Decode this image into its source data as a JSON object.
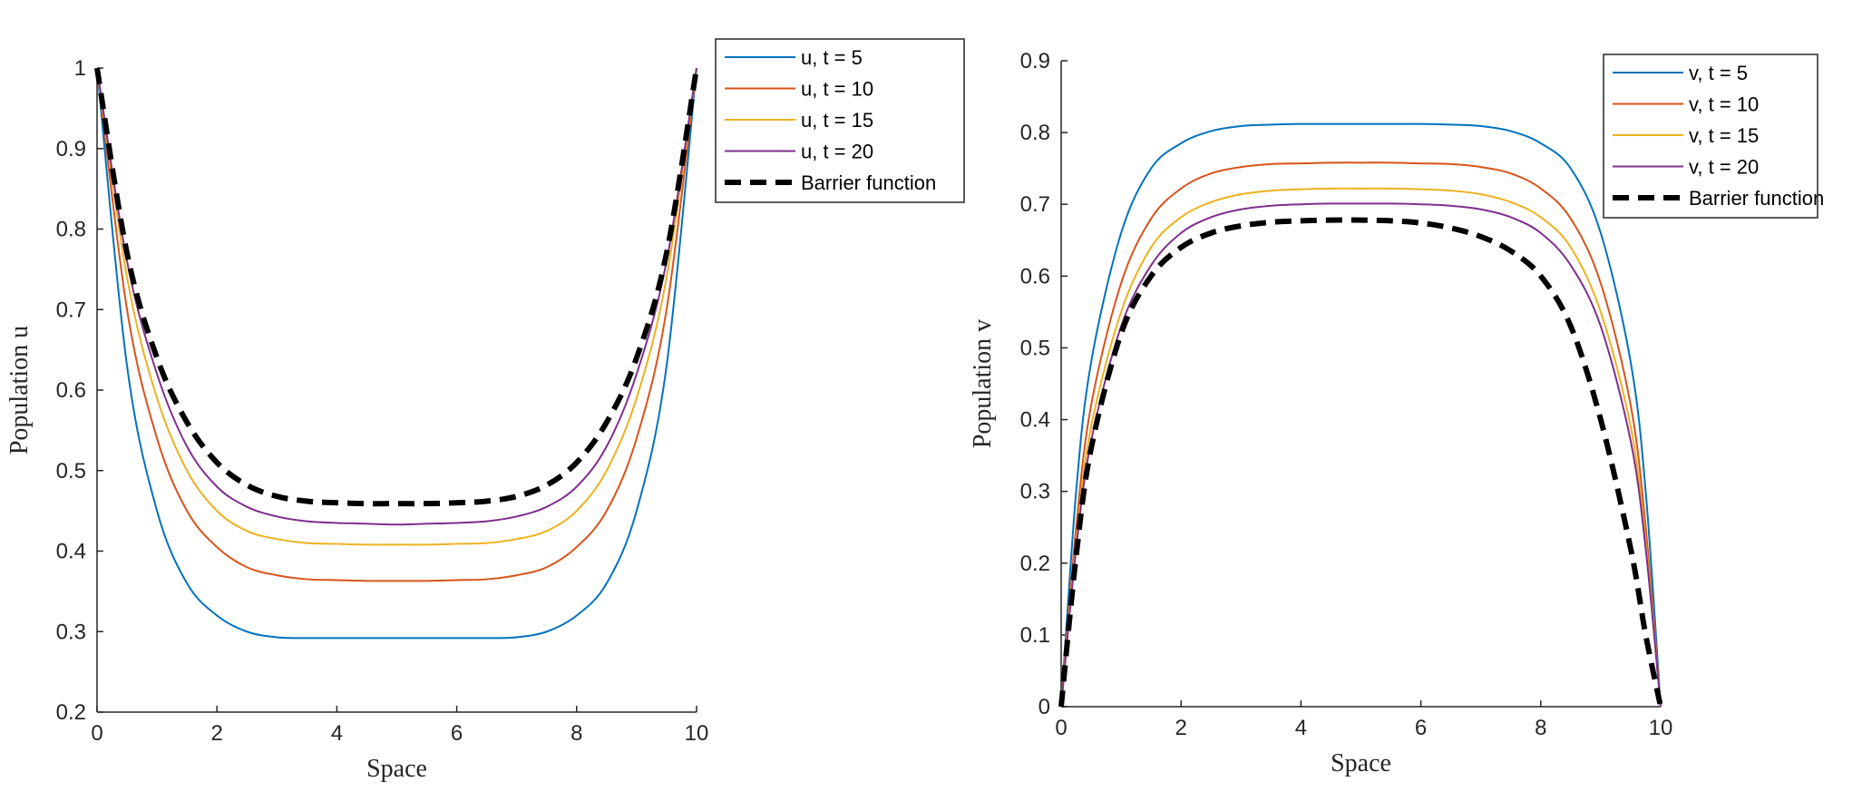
{
  "chart_data": [
    {
      "type": "line",
      "xlabel": "Space",
      "ylabel": "Population u",
      "xlim": [
        0,
        10
      ],
      "ylim": [
        0.2,
        1
      ],
      "xticks": [
        "0",
        "2",
        "4",
        "6",
        "8",
        "10"
      ],
      "yticks": [
        "0.2",
        "0.3",
        "0.4",
        "0.5",
        "0.6",
        "0.7",
        "0.8",
        "0.9",
        "1"
      ],
      "grid": false,
      "legend_position": "outside-top-right",
      "x": [
        0,
        0.5,
        1,
        1.5,
        2,
        2.5,
        3,
        3.5,
        4,
        4.5,
        5,
        5.5,
        6,
        6.5,
        7,
        7.5,
        8,
        8.5,
        9,
        9.5,
        10
      ],
      "series": [
        {
          "name": "u, t = 5",
          "color": "#0072BD",
          "dash": false,
          "values": [
            1.0,
            0.63,
            0.45,
            0.36,
            0.32,
            0.3,
            0.293,
            0.292,
            0.292,
            0.292,
            0.292,
            0.292,
            0.292,
            0.292,
            0.293,
            0.3,
            0.32,
            0.36,
            0.45,
            0.63,
            1.0
          ]
        },
        {
          "name": "u, t = 10",
          "color": "#D95319",
          "dash": false,
          "values": [
            1.0,
            0.7,
            0.54,
            0.45,
            0.405,
            0.38,
            0.37,
            0.365,
            0.364,
            0.363,
            0.363,
            0.363,
            0.364,
            0.365,
            0.37,
            0.38,
            0.405,
            0.45,
            0.54,
            0.7,
            1.0
          ]
        },
        {
          "name": "u, t = 15",
          "color": "#EDB120",
          "dash": false,
          "values": [
            1.0,
            0.74,
            0.59,
            0.5,
            0.45,
            0.425,
            0.415,
            0.41,
            0.409,
            0.408,
            0.408,
            0.408,
            0.409,
            0.41,
            0.415,
            0.425,
            0.45,
            0.5,
            0.59,
            0.74,
            1.0
          ]
        },
        {
          "name": "u, t = 20",
          "color": "#7E2F8E",
          "dash": false,
          "values": [
            1.0,
            0.76,
            0.62,
            0.53,
            0.48,
            0.455,
            0.443,
            0.437,
            0.435,
            0.434,
            0.433,
            0.434,
            0.435,
            0.437,
            0.443,
            0.455,
            0.48,
            0.53,
            0.62,
            0.76,
            1.0
          ]
        },
        {
          "name": "Barrier function",
          "color": "#000000",
          "dash": true,
          "values": [
            1.0,
            0.77,
            0.64,
            0.56,
            0.51,
            0.482,
            0.468,
            0.462,
            0.46,
            0.459,
            0.459,
            0.459,
            0.46,
            0.462,
            0.468,
            0.482,
            0.51,
            0.56,
            0.64,
            0.77,
            1.0
          ]
        }
      ]
    },
    {
      "type": "line",
      "xlabel": "Space",
      "ylabel": "Population v",
      "xlim": [
        0,
        10
      ],
      "ylim": [
        0,
        0.9
      ],
      "xticks": [
        "0",
        "2",
        "4",
        "6",
        "8",
        "10"
      ],
      "yticks": [
        "0",
        "0.1",
        "0.2",
        "0.3",
        "0.4",
        "0.5",
        "0.6",
        "0.7",
        "0.8",
        "0.9"
      ],
      "grid": false,
      "legend_position": "top-right",
      "x": [
        0,
        0.25,
        0.5,
        1,
        1.5,
        2,
        2.5,
        3,
        3.5,
        4,
        4.5,
        5,
        5.5,
        6,
        6.5,
        7,
        7.5,
        8,
        8.5,
        9,
        9.5,
        9.75,
        10
      ],
      "series": [
        {
          "name": "v, t = 5",
          "color": "#0072BD",
          "dash": false,
          "values": [
            0,
            0.3,
            0.48,
            0.66,
            0.75,
            0.785,
            0.802,
            0.809,
            0.811,
            0.812,
            0.812,
            0.812,
            0.812,
            0.812,
            0.811,
            0.809,
            0.802,
            0.785,
            0.75,
            0.66,
            0.48,
            0.3,
            0
          ]
        },
        {
          "name": "v, t = 10",
          "color": "#D95319",
          "dash": false,
          "values": [
            0,
            0.25,
            0.42,
            0.59,
            0.68,
            0.722,
            0.743,
            0.752,
            0.756,
            0.757,
            0.758,
            0.758,
            0.758,
            0.757,
            0.756,
            0.752,
            0.743,
            0.722,
            0.68,
            0.59,
            0.42,
            0.25,
            0
          ]
        },
        {
          "name": "v, t = 15",
          "color": "#EDB120",
          "dash": false,
          "values": [
            0,
            0.23,
            0.39,
            0.55,
            0.64,
            0.682,
            0.703,
            0.714,
            0.719,
            0.721,
            0.722,
            0.722,
            0.722,
            0.721,
            0.719,
            0.714,
            0.703,
            0.682,
            0.64,
            0.55,
            0.39,
            0.23,
            0
          ]
        },
        {
          "name": "v, t = 20",
          "color": "#7E2F8E",
          "dash": false,
          "values": [
            0,
            0.22,
            0.37,
            0.53,
            0.615,
            0.66,
            0.682,
            0.693,
            0.698,
            0.7,
            0.701,
            0.701,
            0.701,
            0.7,
            0.698,
            0.693,
            0.682,
            0.66,
            0.615,
            0.53,
            0.37,
            0.22,
            0
          ]
        },
        {
          "name": "Barrier function",
          "color": "#000000",
          "dash": true,
          "values": [
            0,
            0.21,
            0.36,
            0.52,
            0.6,
            0.64,
            0.66,
            0.67,
            0.675,
            0.677,
            0.678,
            0.678,
            0.677,
            0.674,
            0.667,
            0.655,
            0.635,
            0.6,
            0.53,
            0.4,
            0.22,
            0.1,
            0
          ]
        }
      ]
    }
  ]
}
